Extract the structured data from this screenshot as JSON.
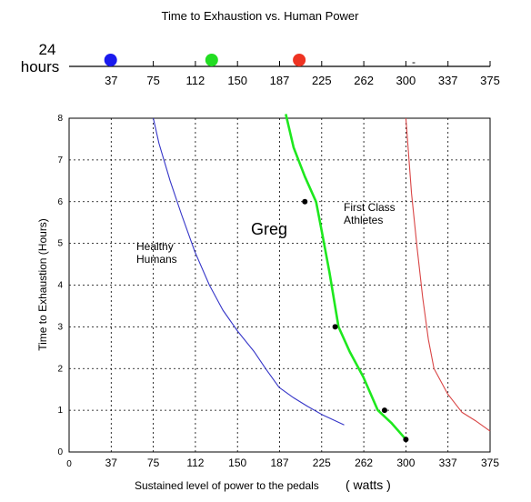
{
  "chart_data": {
    "type": "line",
    "title": "Time to Exhaustion vs. Human Power",
    "xlabel": "Sustained level of power to the pedals",
    "xlabel_unit": "( watts )",
    "ylabel": "Time to Exhaustion (Hours)",
    "xlim": [
      0,
      375
    ],
    "ylim": [
      0,
      8
    ],
    "x_ticks": [
      "0",
      "37",
      "75",
      "112",
      "150",
      "187",
      "225",
      "262",
      "300",
      "337",
      "375"
    ],
    "y_ticks": [
      "0",
      "1",
      "2",
      "3",
      "4",
      "5",
      "6",
      "7",
      "8"
    ],
    "grid": true,
    "series": [
      {
        "name": "Healthy Humans",
        "color": "#3535c8",
        "x": [
          75,
          80,
          90,
          100,
          112,
          125,
          137,
          150,
          165,
          175,
          187,
          200,
          212,
          225,
          237,
          245
        ],
        "y": [
          8.0,
          7.4,
          6.5,
          5.7,
          4.8,
          4.0,
          3.4,
          2.9,
          2.4,
          2.0,
          1.55,
          1.3,
          1.1,
          0.9,
          0.75,
          0.65
        ]
      },
      {
        "name": "Greg",
        "color": "#1ee81e",
        "x": [
          193,
          200,
          210,
          220,
          225,
          232,
          240,
          250,
          262,
          275,
          287,
          300
        ],
        "y": [
          8.1,
          7.3,
          6.6,
          6.0,
          5.3,
          4.3,
          3.0,
          2.4,
          1.8,
          1.0,
          0.7,
          0.3
        ],
        "markers": {
          "x": [
            210,
            237,
            281,
            300
          ],
          "y": [
            6.0,
            3.0,
            1.0,
            0.3
          ]
        }
      },
      {
        "name": "First Class Athletes",
        "color": "#d94545",
        "x": [
          300,
          305,
          310,
          315,
          320,
          325,
          337,
          350,
          362,
          375
        ],
        "y": [
          8.0,
          6.2,
          4.9,
          3.7,
          2.7,
          2.0,
          1.4,
          0.95,
          0.75,
          0.5
        ]
      }
    ],
    "annotations": {
      "healthy": "Healthy\nHumans",
      "greg": "Greg",
      "athletes": "First Class\nAthletes"
    }
  },
  "top_scale": {
    "hours_value": "24",
    "hours_unit": "hours",
    "ticks": [
      "37",
      "75",
      "112",
      "150",
      "187",
      "225",
      "262",
      "300",
      "337",
      "375"
    ],
    "dots": [
      {
        "x": 37,
        "color": "#1a1aee"
      },
      {
        "x": 127,
        "color": "#22dd22"
      },
      {
        "x": 205,
        "color": "#ee3322"
      }
    ],
    "dash": "-"
  }
}
